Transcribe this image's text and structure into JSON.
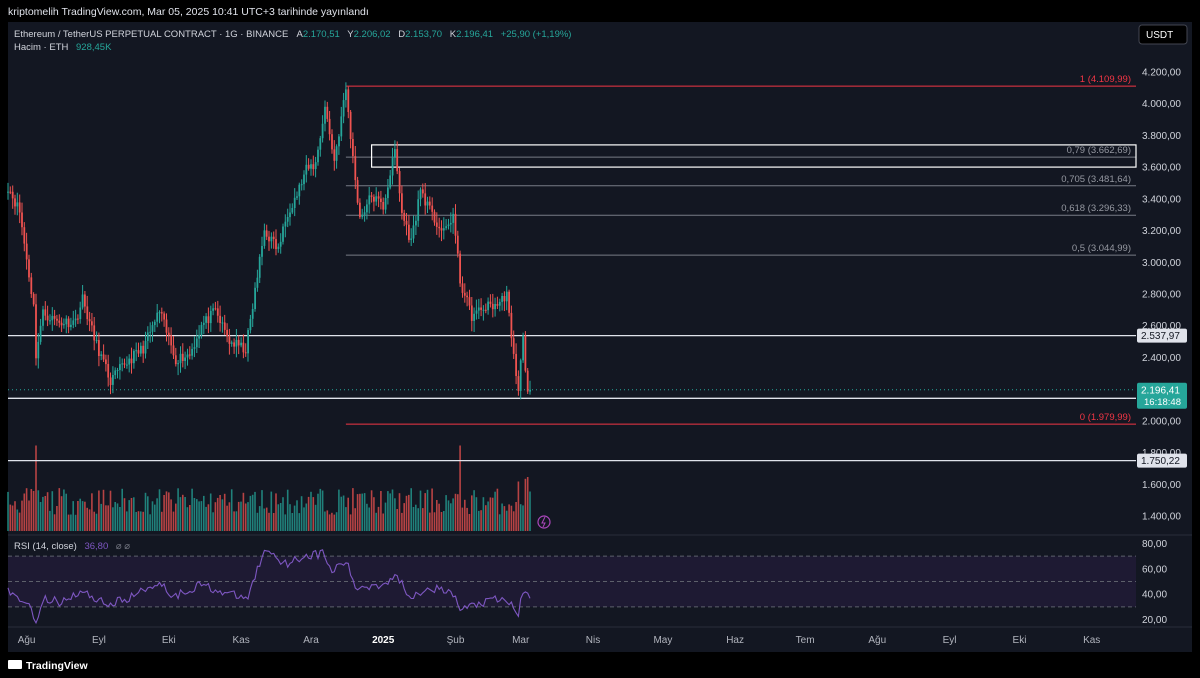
{
  "header": {
    "publisher_line": "kriptomelih TradingView.com, Mar 05, 2025 10:41 UTC+3 tarihinde yayınlandı",
    "symbol": "Ethereum / TetherUS PERPETUAL CONTRACT · 1G · BINANCE",
    "ohlc_label_open": "A",
    "open": "2.170,51",
    "ohlc_label_high": "Y",
    "high": "2.206,02",
    "ohlc_label_low": "D",
    "low": "2.153,70",
    "ohlc_label_close": "K",
    "close": "2.196,41",
    "change": "+25,90 (+1,19%)",
    "volume_label": "Hacim · ETH",
    "volume_value": "928,45K",
    "currency_button": "USDT"
  },
  "colors": {
    "background": "#131722",
    "up": "#26a69a",
    "down": "#ef5350",
    "fib_line": "#787b86",
    "fib_edge": "#f23645",
    "rsi_line": "#7e57c2",
    "rsi_band": "#1e1a33",
    "horizontal_line": "#e0e3eb"
  },
  "chart_data": {
    "type": "candlestick",
    "symbol": "ETHUSDT.P",
    "interval": "1D",
    "y_axis": {
      "ticks": [
        "1.400,00",
        "1.600,00",
        "1.800,00",
        "2.000,00",
        "2.200,00",
        "2.400,00",
        "2.600,00",
        "2.800,00",
        "3.000,00",
        "3.200,00",
        "3.400,00",
        "3.600,00",
        "3.800,00",
        "4.000,00",
        "4.200,00"
      ],
      "tick_values": [
        1400,
        1600,
        1800,
        2000,
        2200,
        2400,
        2600,
        2800,
        3000,
        3200,
        3400,
        3600,
        3800,
        4000,
        4200
      ],
      "range": [
        1300,
        4300
      ]
    },
    "x_axis": {
      "labels": [
        "Ağu",
        "Eyl",
        "Eki",
        "Kas",
        "Ara",
        "2025",
        "Şub",
        "Mar",
        "Nis",
        "May",
        "Haz",
        "Tem",
        "Ağu",
        "Eyl",
        "Eki",
        "Kas"
      ],
      "label_dates": [
        "2024-08-01",
        "2024-09-01",
        "2024-10-01",
        "2024-11-01",
        "2024-12-01",
        "2025-01-01",
        "2025-02-01",
        "2025-03-01",
        "2025-04-01",
        "2025-05-01",
        "2025-06-01",
        "2025-07-01",
        "2025-08-01",
        "2025-09-01",
        "2025-10-01",
        "2025-11-01"
      ],
      "range": [
        "2024-07-24",
        "2025-11-20"
      ]
    },
    "price_path": [
      [
        "2024-07-24",
        3480
      ],
      [
        "2024-07-29",
        3320
      ],
      [
        "2024-08-04",
        2720
      ],
      [
        "2024-08-05",
        2420
      ],
      [
        "2024-08-08",
        2680
      ],
      [
        "2024-08-15",
        2620
      ],
      [
        "2024-08-22",
        2630
      ],
      [
        "2024-08-25",
        2770
      ],
      [
        "2024-08-30",
        2520
      ],
      [
        "2024-09-06",
        2250
      ],
      [
        "2024-09-12",
        2360
      ],
      [
        "2024-09-20",
        2460
      ],
      [
        "2024-09-27",
        2690
      ],
      [
        "2024-10-04",
        2390
      ],
      [
        "2024-10-10",
        2420
      ],
      [
        "2024-10-15",
        2600
      ],
      [
        "2024-10-21",
        2690
      ],
      [
        "2024-10-27",
        2500
      ],
      [
        "2024-11-03",
        2450
      ],
      [
        "2024-11-06",
        2720
      ],
      [
        "2024-11-11",
        3200
      ],
      [
        "2024-11-17",
        3080
      ],
      [
        "2024-11-21",
        3320
      ],
      [
        "2024-11-25",
        3430
      ],
      [
        "2024-11-29",
        3580
      ],
      [
        "2024-12-03",
        3620
      ],
      [
        "2024-12-07",
        3980
      ],
      [
        "2024-12-11",
        3640
      ],
      [
        "2024-12-16",
        4090
      ],
      [
        "2024-12-19",
        3650
      ],
      [
        "2024-12-22",
        3280
      ],
      [
        "2024-12-27",
        3420
      ],
      [
        "2025-01-01",
        3350
      ],
      [
        "2025-01-06",
        3700
      ],
      [
        "2025-01-09",
        3310
      ],
      [
        "2025-01-13",
        3130
      ],
      [
        "2025-01-17",
        3460
      ],
      [
        "2025-01-22",
        3290
      ],
      [
        "2025-01-27",
        3180
      ],
      [
        "2025-01-31",
        3300
      ],
      [
        "2025-02-03",
        2880
      ],
      [
        "2025-02-08",
        2660
      ],
      [
        "2025-02-14",
        2720
      ],
      [
        "2025-02-20",
        2740
      ],
      [
        "2025-02-23",
        2810
      ],
      [
        "2025-02-25",
        2500
      ],
      [
        "2025-02-28",
        2210
      ],
      [
        "2025-03-02",
        2520
      ],
      [
        "2025-03-04",
        2170
      ],
      [
        "2025-03-05",
        2196.41
      ]
    ],
    "fibonacci": [
      {
        "ratio": "1",
        "price": 4109.99,
        "label": "1 (4.109,99)"
      },
      {
        "ratio": "0,79",
        "price": 3662.69,
        "label": "0,79 (3.662,69)"
      },
      {
        "ratio": "0,705",
        "price": 3481.64,
        "label": "0,705 (3.481,64)"
      },
      {
        "ratio": "0,618",
        "price": 3296.33,
        "label": "0,618 (3.296,33)"
      },
      {
        "ratio": "0,5",
        "price": 3044.99,
        "label": "0,5 (3.044,99)"
      },
      {
        "ratio": "0",
        "price": 1979.99,
        "label": "0 (1.979,99)"
      }
    ],
    "fib_start_date": "2024-12-16",
    "fib_zone": {
      "from_date": "2024-12-27",
      "top": 3740,
      "bottom": 3600
    },
    "horizontal_levels": [
      {
        "price": 2537.97,
        "label": "2.537,97"
      },
      {
        "price": 2142.38,
        "label": "2.142,38"
      },
      {
        "price": 1750.22,
        "label": "1.750,22"
      }
    ],
    "last_price": {
      "price": 2196.41,
      "label": "2.196,41",
      "countdown": "16:18:48"
    },
    "volume": {
      "label": "Hacim · ETH",
      "value": "928,45K",
      "spikes": [
        [
          "2024-08-05",
          0.95
        ],
        [
          "2024-12-06",
          0.45
        ],
        [
          "2025-02-03",
          0.95
        ],
        [
          "2025-02-28",
          0.55
        ],
        [
          "2025-03-03",
          0.58
        ],
        [
          "2025-03-04",
          0.6
        ]
      ]
    },
    "rsi": {
      "label": "RSI (14, close)",
      "value": "36,80",
      "ticks": [
        "20,00",
        "40,00",
        "60,00",
        "80,00"
      ],
      "tick_values": [
        20,
        40,
        60,
        80
      ],
      "range": [
        15,
        85
      ],
      "band": [
        30,
        70
      ],
      "points": [
        [
          "2024-07-24",
          42
        ],
        [
          "2024-08-02",
          32
        ],
        [
          "2024-08-05",
          20
        ],
        [
          "2024-08-09",
          36
        ],
        [
          "2024-08-15",
          34
        ],
        [
          "2024-08-24",
          42
        ],
        [
          "2024-09-06",
          32
        ],
        [
          "2024-09-15",
          38
        ],
        [
          "2024-09-27",
          50
        ],
        [
          "2024-10-03",
          38
        ],
        [
          "2024-10-15",
          48
        ],
        [
          "2024-10-26",
          40
        ],
        [
          "2024-11-04",
          37
        ],
        [
          "2024-11-08",
          60
        ],
        [
          "2024-11-12",
          76
        ],
        [
          "2024-11-20",
          64
        ],
        [
          "2024-11-28",
          70
        ],
        [
          "2024-12-06",
          72
        ],
        [
          "2024-12-10",
          58
        ],
        [
          "2024-12-16",
          66
        ],
        [
          "2024-12-20",
          45
        ],
        [
          "2025-01-01",
          48
        ],
        [
          "2025-01-06",
          55
        ],
        [
          "2025-01-13",
          38
        ],
        [
          "2025-01-20",
          46
        ],
        [
          "2025-01-31",
          40
        ],
        [
          "2025-02-03",
          28
        ],
        [
          "2025-02-10",
          32
        ],
        [
          "2025-02-20",
          36
        ],
        [
          "2025-02-25",
          32
        ],
        [
          "2025-02-28",
          25
        ],
        [
          "2025-03-02",
          42
        ],
        [
          "2025-03-05",
          36.8
        ]
      ]
    }
  },
  "footer": {
    "brand": "TradingView"
  }
}
